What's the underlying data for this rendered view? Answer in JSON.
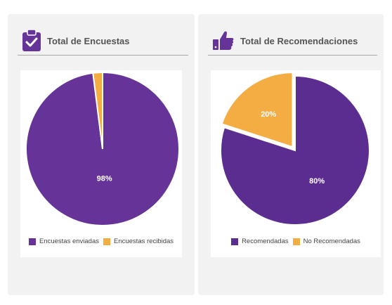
{
  "colors": {
    "primary": "#663399",
    "primary_dark": "#5c2d91",
    "accent": "#f4ad42"
  },
  "cards": [
    {
      "title": "Total de Encuestas",
      "icon": "clipboard-check-icon",
      "chart_data": {
        "type": "pie",
        "categories": [
          "Encuestas enviadas",
          "Encuestas recibidas"
        ],
        "values": [
          98,
          2
        ],
        "data_labels": [
          "98%",
          ""
        ],
        "colors": [
          "#663399",
          "#f4ad42"
        ],
        "legend_position": "bottom"
      }
    },
    {
      "title": "Total de Recomendaciones",
      "icon": "thumbs-up-icon",
      "chart_data": {
        "type": "pie",
        "categories": [
          "Recomendadas",
          "No Recomendadas"
        ],
        "values": [
          80,
          20
        ],
        "data_labels": [
          "80%",
          "20%"
        ],
        "colors": [
          "#5c2d91",
          "#f4ad42"
        ],
        "legend_position": "bottom"
      }
    }
  ]
}
